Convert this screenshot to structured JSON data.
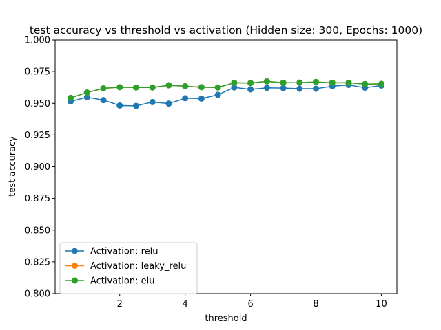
{
  "chart_data": {
    "type": "line",
    "title": "test accuracy vs threshold vs activation (Hidden size: 300, Epochs: 1000)",
    "xlabel": "threshold",
    "ylabel": "test accuracy",
    "xlim": [
      0.025,
      10.475
    ],
    "ylim": [
      0.8,
      1.0
    ],
    "xticks": [
      2,
      4,
      6,
      8,
      10
    ],
    "yticks": [
      0.8,
      0.825,
      0.85,
      0.875,
      0.9,
      0.925,
      0.95,
      0.975,
      1.0
    ],
    "ytick_labels": [
      "0.800",
      "0.825",
      "0.850",
      "0.875",
      "0.900",
      "0.925",
      "0.950",
      "0.975",
      "1.000"
    ],
    "grid": false,
    "legend_position": "lower-left",
    "x": [
      0.5,
      1.0,
      1.5,
      2.0,
      2.5,
      3.0,
      3.5,
      4.0,
      4.5,
      5.0,
      5.5,
      6.0,
      6.5,
      7.0,
      7.5,
      8.0,
      8.5,
      9.0,
      9.5,
      10.0
    ],
    "series": [
      {
        "name": "Activation: relu",
        "color": "#1f77b4",
        "values": [
          0.9515,
          0.9548,
          0.9525,
          0.9483,
          0.948,
          0.951,
          0.9498,
          0.954,
          0.9537,
          0.9567,
          0.9625,
          0.961,
          0.9622,
          0.962,
          0.9615,
          0.9615,
          0.9635,
          0.9645,
          0.9623,
          0.964
        ]
      },
      {
        "name": "Activation: leaky_relu",
        "color": "#ff7f0e",
        "values": [
          0.9543,
          0.9585,
          0.9618,
          0.9627,
          0.9625,
          0.9625,
          0.9642,
          0.9635,
          0.9627,
          0.9625,
          0.9662,
          0.966,
          0.9673,
          0.9662,
          0.9663,
          0.9668,
          0.9662,
          0.9662,
          0.9652,
          0.9653
        ]
      },
      {
        "name": "Activation: elu",
        "color": "#2ca02c",
        "values": [
          0.9543,
          0.9585,
          0.9618,
          0.9627,
          0.9625,
          0.9625,
          0.9642,
          0.9635,
          0.9627,
          0.9625,
          0.9662,
          0.966,
          0.9673,
          0.9662,
          0.9663,
          0.9668,
          0.9662,
          0.9662,
          0.9652,
          0.9653
        ]
      }
    ]
  }
}
